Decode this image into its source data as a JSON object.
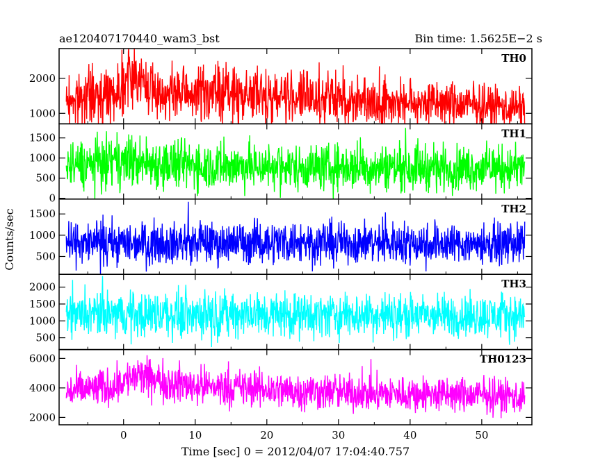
{
  "chart_data": {
    "type": "line",
    "title_left": "ae120407170440_wam3_bst",
    "title_right": "Bin time: 1.5625E−2 s",
    "xlabel": "Time [sec] 0 = 2012/04/07 17:04:40.757",
    "ylabel": "Counts/sec",
    "xlim": [
      -9,
      57
    ],
    "x_data_range": [
      -8,
      56
    ],
    "x_ticks": [
      0,
      10,
      20,
      30,
      40,
      50
    ],
    "x_tick_labels": [
      "0",
      "10",
      "20",
      "30",
      "40",
      "50"
    ],
    "grid": false,
    "panels": [
      {
        "name": "TH0",
        "color": "#ff0000",
        "ylim": [
          700,
          2850
        ],
        "y_ticks": [
          1000,
          2000
        ],
        "y_tick_labels": [
          "1000",
          "2000"
        ],
        "envelope": {
          "x": [
            -8,
            -4,
            -1,
            0,
            1,
            2,
            3,
            5,
            8,
            12,
            16,
            20,
            24,
            28,
            32,
            36,
            40,
            44,
            48,
            52,
            56
          ],
          "low": [
            550,
            600,
            650,
            900,
            1150,
            1100,
            900,
            700,
            650,
            600,
            600,
            600,
            580,
            560,
            550,
            540,
            530,
            520,
            520,
            510,
            500
          ],
          "high": [
            2200,
            2400,
            2600,
            2900,
            3100,
            3050,
            2750,
            2400,
            2450,
            2600,
            2500,
            2400,
            2350,
            2250,
            2200,
            2150,
            2100,
            2050,
            1950,
            1900,
            1800
          ]
        }
      },
      {
        "name": "TH1",
        "color": "#00ff00",
        "ylim": [
          -20,
          1850
        ],
        "y_ticks": [
          0,
          500,
          1000,
          1500
        ],
        "y_tick_labels": [
          "0",
          "500",
          "1000",
          "1500"
        ],
        "envelope": {
          "x": [
            -8,
            0,
            8,
            16,
            24,
            32,
            40,
            48,
            56
          ],
          "low": [
            100,
            150,
            100,
            100,
            100,
            100,
            100,
            100,
            100
          ],
          "high": [
            1500,
            1700,
            1550,
            1500,
            1450,
            1450,
            1450,
            1400,
            1400
          ]
        }
      },
      {
        "name": "TH2",
        "color": "#0000ff",
        "ylim": [
          80,
          1850
        ],
        "y_ticks": [
          500,
          1000,
          1500
        ],
        "y_tick_labels": [
          "500",
          "1000",
          "1500"
        ],
        "envelope": {
          "x": [
            -8,
            0,
            8,
            16,
            24,
            32,
            40,
            48,
            56
          ],
          "low": [
            250,
            250,
            250,
            250,
            250,
            250,
            250,
            250,
            250
          ],
          "high": [
            1350,
            1400,
            1400,
            1400,
            1450,
            1400,
            1400,
            1350,
            1350
          ]
        }
      },
      {
        "name": "TH3",
        "color": "#00ffff",
        "ylim": [
          150,
          2380
        ],
        "y_ticks": [
          500,
          1000,
          1500,
          2000
        ],
        "y_tick_labels": [
          "500",
          "1000",
          "1500",
          "2000"
        ],
        "envelope": {
          "x": [
            -8,
            0,
            8,
            16,
            24,
            32,
            40,
            48,
            56
          ],
          "low": [
            400,
            400,
            400,
            400,
            400,
            400,
            400,
            400,
            400
          ],
          "high": [
            1900,
            2000,
            2000,
            2000,
            1950,
            1950,
            1900,
            1900,
            1900
          ]
        }
      },
      {
        "name": "TH0123",
        "color": "#ff00ff",
        "ylim": [
          1500,
          6600
        ],
        "y_ticks": [
          2000,
          4000,
          6000
        ],
        "y_tick_labels": [
          "2000",
          "4000",
          "6000"
        ],
        "envelope": {
          "x": [
            -8,
            -2,
            0,
            2,
            4,
            8,
            12,
            16,
            20,
            24,
            28,
            32,
            36,
            40,
            44,
            48,
            52,
            56
          ],
          "low": [
            2300,
            2500,
            3000,
            3200,
            3000,
            2700,
            2600,
            2500,
            2400,
            2300,
            2300,
            2200,
            2200,
            2200,
            2100,
            2100,
            2100,
            2000
          ],
          "high": [
            5200,
            5600,
            6000,
            6400,
            6200,
            5800,
            5600,
            5500,
            5400,
            5300,
            5200,
            5100,
            5000,
            5000,
            5000,
            4900,
            4900,
            4800
          ]
        }
      }
    ]
  }
}
